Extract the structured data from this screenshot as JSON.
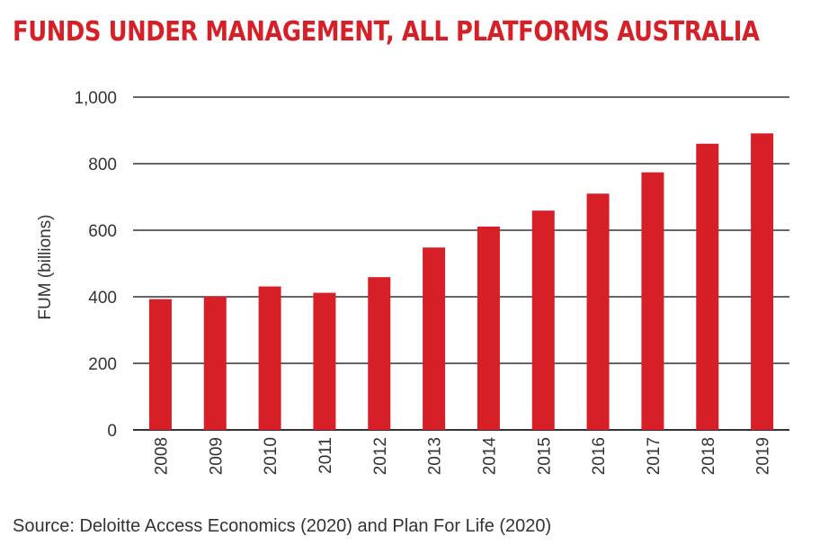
{
  "colors": {
    "accent": "#d71f27",
    "grid": "#333333",
    "text": "#333333"
  },
  "title": "FUNDS UNDER MANAGEMENT, ALL PLATFORMS AUSTRALIA",
  "source": "Source: Deloitte Access Economics (2020) and Plan For Life (2020)",
  "chart_data": {
    "type": "bar",
    "title": "FUNDS UNDER MANAGEMENT, ALL PLATFORMS AUSTRALIA",
    "xlabel": "",
    "ylabel": "FUM (billions)",
    "ylim": [
      0,
      1000
    ],
    "yticks": [
      "0",
      "200",
      "400",
      "600",
      "800",
      "1,000"
    ],
    "grid": true,
    "categories": [
      "2008",
      "2009",
      "2010",
      "2011",
      "2012",
      "2013",
      "2014",
      "2015",
      "2016",
      "2017",
      "2018",
      "2019"
    ],
    "values": [
      393,
      401,
      431,
      412,
      459,
      548,
      611,
      659,
      710,
      774,
      860,
      891
    ]
  }
}
